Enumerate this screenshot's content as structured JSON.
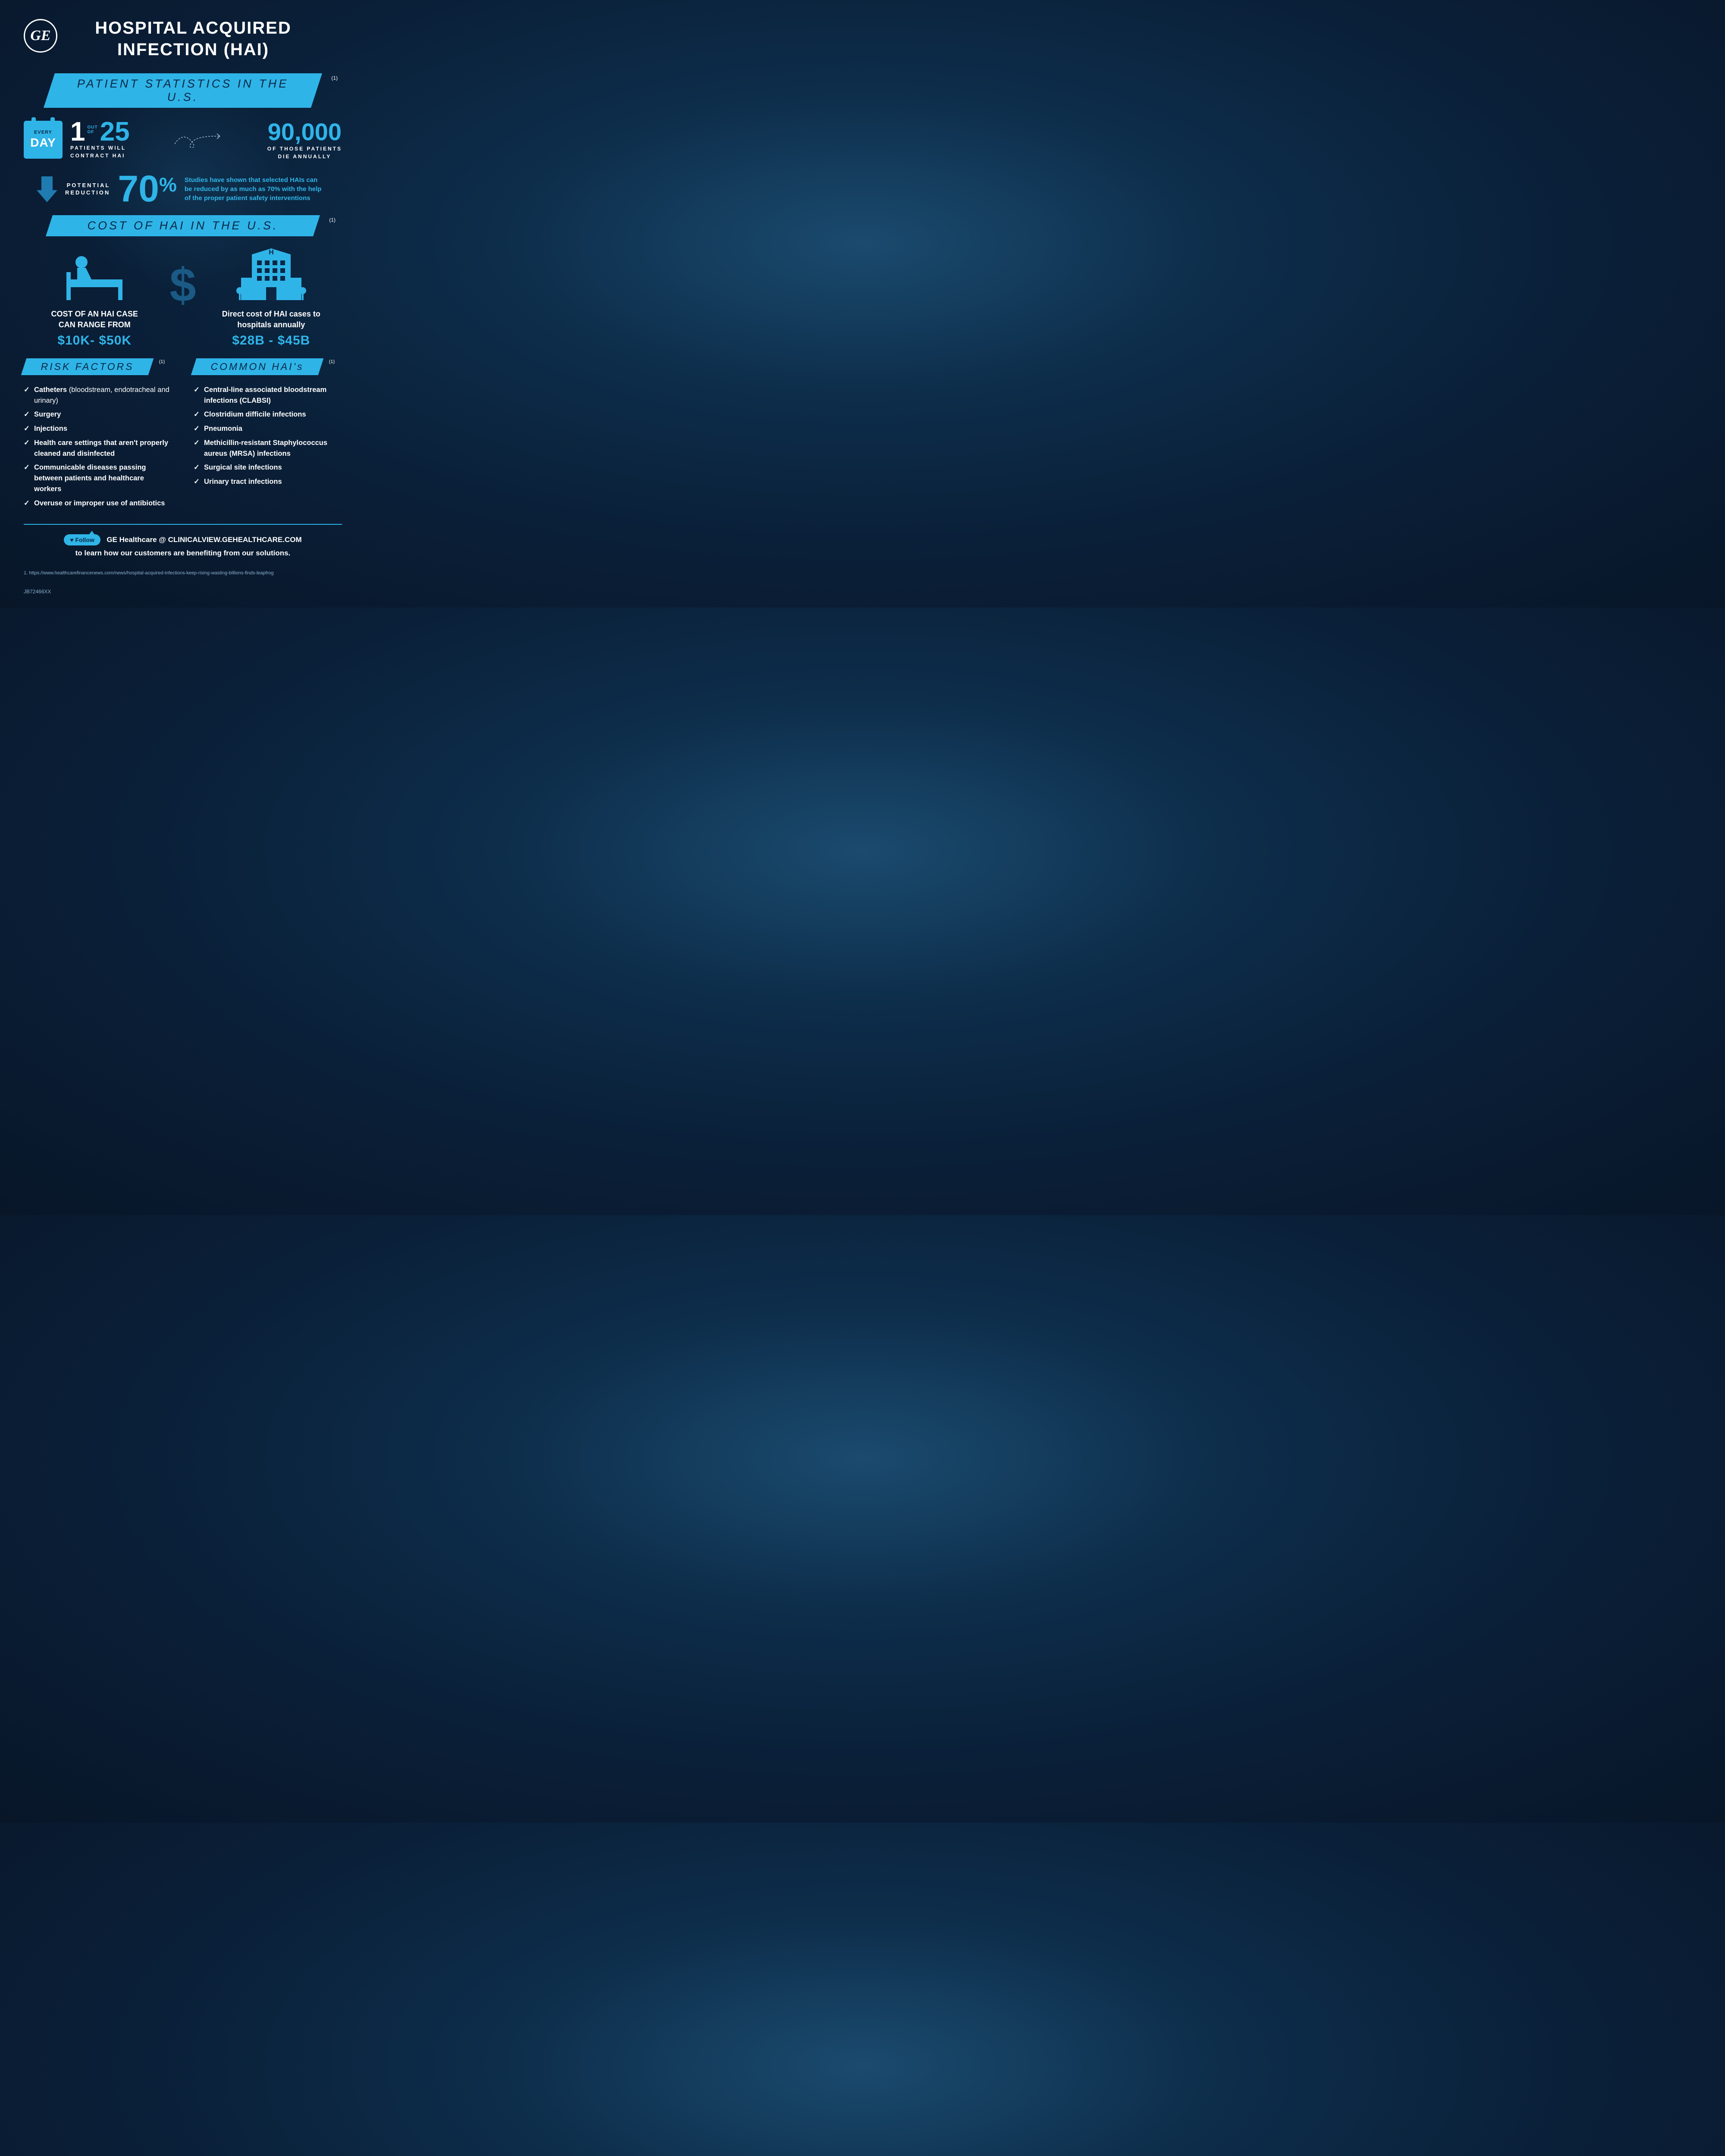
{
  "colors": {
    "accent": "#2fb4e8",
    "accent_dark": "#1f7bb0",
    "bg_gradient_inner": "#1a4a6e",
    "bg_gradient_outer": "#081628",
    "text": "#ffffff",
    "muted": "#8ab0cc",
    "banner_text": "#0a2845"
  },
  "logo": {
    "text": "GE"
  },
  "title": "HOSPITAL ACQUIRED INFECTION (HAI)",
  "section1": {
    "banner": "PATIENT STATISTICS IN THE U.S.",
    "ref": "(1)",
    "calendar": {
      "every": "EVERY",
      "day": "DAY"
    },
    "stat1": {
      "num1": "1",
      "out": "OUT",
      "of": "OF",
      "num2": "25",
      "line1": "PATIENTS WILL",
      "line2": "CONTRACT HAI"
    },
    "stat2": {
      "num": "90,000",
      "line1": "OF THOSE PATIENTS",
      "line2": "DIE ANNUALLY"
    },
    "reduction": {
      "label1": "POTENTIAL",
      "label2": "REDUCTION",
      "value": "70",
      "pct": "%",
      "blurb": "Studies have shown that selected HAIs can be reduced by as much as 70% with the help of the proper patient safety interventions"
    }
  },
  "section2": {
    "banner": "COST OF HAI IN THE U.S.",
    "ref": "(1)",
    "dollar": "$",
    "left": {
      "line1": "COST OF AN HAI CASE",
      "line2": "CAN RANGE FROM",
      "value": "$10K- $50K"
    },
    "right": {
      "line1": "Direct cost of HAI cases to",
      "line2": "hospitals annually",
      "value": "$28B - $45B"
    }
  },
  "risk": {
    "banner": "RISK FACTORS",
    "ref": "(1)",
    "items": [
      {
        "bold": "Catheters",
        "rest": " (bloodstream, endotracheal and urinary)"
      },
      {
        "bold": "Surgery",
        "rest": ""
      },
      {
        "bold": "Injections",
        "rest": ""
      },
      {
        "bold": "Health care settings that aren't properly cleaned and disinfected",
        "rest": ""
      },
      {
        "bold": "Communicable diseases passing between patients and healthcare workers",
        "rest": ""
      },
      {
        "bold": "Overuse or improper use of antibiotics",
        "rest": ""
      }
    ]
  },
  "common": {
    "banner": "COMMON HAI's",
    "ref": "(1)",
    "items": [
      "Central-line associated bloodstream infections (CLABSI)",
      "Clostridium difficile infections",
      "Pneumonia",
      "Methicillin-resistant Staphylococcus aureus (MRSA) infections",
      "Surgical site infections",
      "Urinary tract infections"
    ]
  },
  "footer": {
    "follow_badge": "♥ Follow",
    "follow_text_1": "GE Healthcare @ ",
    "follow_url": "CLINICALVIEW.GEHEALTHCARE.COM",
    "follow_sub": "to learn how our customers are benefiting from our solutions.",
    "source": "1. https://www.healthcarefinancenews.com/news/hospital-acquired-infections-keep-rising-wasting-billions-finds-leapfrog",
    "jobcode": "JB72466XX"
  }
}
